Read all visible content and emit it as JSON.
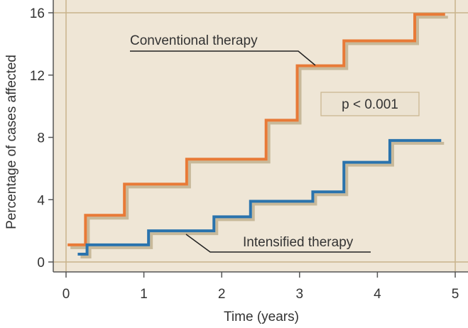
{
  "chart_data": {
    "type": "line",
    "style": "step",
    "title": "",
    "xlabel": "Time (years)",
    "ylabel": "Percentage of cases affected",
    "xlim": [
      0,
      5
    ],
    "ylim": [
      0,
      16
    ],
    "xticks": [
      "0",
      "1",
      "2",
      "3",
      "4",
      "5"
    ],
    "yticks": [
      "0",
      "4",
      "8",
      "12",
      "16"
    ],
    "grid": false,
    "legend": "none",
    "colors": {
      "background": "#efe6d6",
      "frame": "#c9b48c",
      "conventional": "#e87a37",
      "intensified": "#2a73ad",
      "shadow": "#c8b99a",
      "text": "#333333"
    },
    "series": [
      {
        "name": "Conventional therapy",
        "x": [
          0.02,
          0.25,
          0.75,
          1.55,
          2.57,
          2.97,
          3.57,
          4.48,
          4.87
        ],
        "y": [
          1.1,
          3.0,
          5.0,
          6.6,
          9.1,
          12.6,
          14.2,
          15.9,
          15.9
        ]
      },
      {
        "name": "Intensified therapy",
        "x": [
          0.15,
          0.27,
          1.06,
          1.9,
          2.37,
          3.17,
          3.57,
          4.16,
          4.82
        ],
        "y": [
          0.5,
          1.1,
          2.0,
          2.9,
          3.9,
          4.5,
          6.4,
          7.8,
          7.8
        ]
      }
    ],
    "annotations": {
      "conventional_label": "Conventional therapy",
      "intensified_label": "Intensified therapy",
      "p_value": "p < 0.001"
    }
  }
}
